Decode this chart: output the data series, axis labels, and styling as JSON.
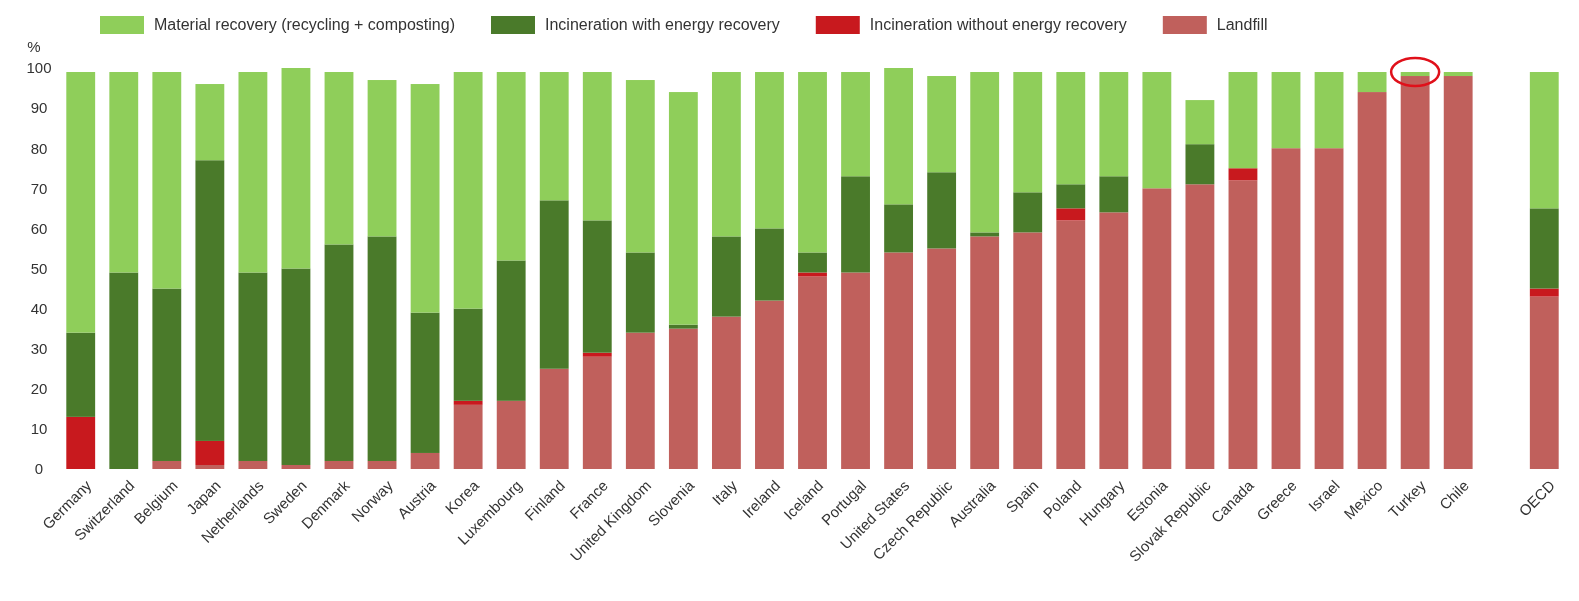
{
  "chart_data": {
    "type": "bar",
    "stacked": true,
    "ylabel": "%",
    "legend": "top",
    "categories": [
      "Germany",
      "Switzerland",
      "Belgium",
      "Japan",
      "Netherlands",
      "Sweden",
      "Denmark",
      "Norway",
      "Austria",
      "Korea",
      "Luxembourg",
      "Finland",
      "France",
      "United Kingdom",
      "Slovenia",
      "Italy",
      "Ireland",
      "Iceland",
      "Portugal",
      "United States",
      "Czech Republic",
      "Australia",
      "Spain",
      "Poland",
      "Hungary",
      "Estonia",
      "Slovak Republic",
      "Canada",
      "Greece",
      "Israel",
      "Mexico",
      "Turkey",
      "Chile",
      null,
      "OECD"
    ],
    "series": [
      {
        "name": "Landfill",
        "color": "#c0605c",
        "values": [
          0,
          0,
          2,
          1,
          2,
          1,
          2,
          2,
          4,
          16,
          17,
          25,
          28,
          34,
          35,
          38,
          42,
          48,
          49,
          54,
          55,
          58,
          59,
          62,
          64,
          70,
          71,
          72,
          80,
          80,
          94,
          98,
          98,
          null,
          43
        ]
      },
      {
        "name": "Incineration without energy recovery",
        "color": "#c8191e",
        "values": [
          13,
          0,
          0,
          6,
          0,
          0,
          0,
          0,
          0,
          1,
          0,
          0,
          1,
          0,
          0,
          0,
          0,
          1,
          0,
          0,
          0,
          0,
          0,
          3,
          0,
          0,
          0,
          3,
          0,
          0,
          0,
          0,
          0,
          null,
          2
        ]
      },
      {
        "name": "Incineration with energy recovery",
        "color": "#4a7a2a",
        "values": [
          21,
          49,
          43,
          70,
          47,
          49,
          54,
          56,
          35,
          23,
          35,
          42,
          33,
          20,
          1,
          20,
          18,
          5,
          24,
          12,
          19,
          1,
          10,
          6,
          9,
          0,
          10,
          0,
          0,
          0,
          0,
          0,
          0,
          null,
          20
        ]
      },
      {
        "name": "Material recovery (recycling + composting)",
        "color": "#8fce5a",
        "values": [
          65,
          50,
          54,
          19,
          50,
          50,
          43,
          39,
          57,
          59,
          47,
          32,
          37,
          43,
          58,
          41,
          39,
          45,
          26,
          34,
          24,
          40,
          30,
          28,
          26,
          29,
          11,
          24,
          19,
          19,
          5,
          1,
          1,
          null,
          34
        ]
      }
    ],
    "ylim": [
      0,
      100
    ],
    "yticks": [
      0,
      10,
      20,
      30,
      40,
      50,
      60,
      70,
      80,
      90,
      100
    ],
    "grid": false
  }
}
